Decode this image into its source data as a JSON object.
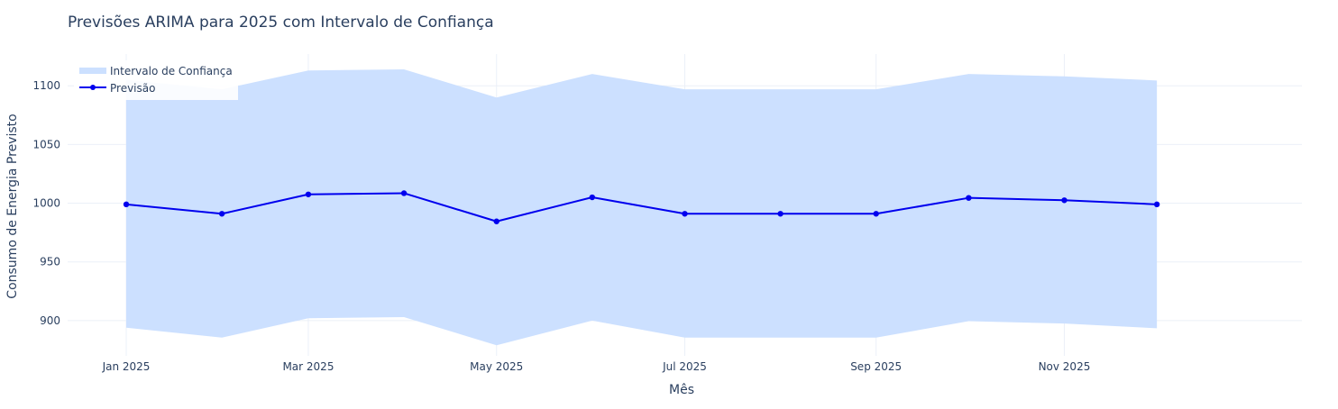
{
  "chart_data": {
    "type": "line",
    "title": "Previsões ARIMA para 2025 com Intervalo de Confiança",
    "xlabel": "Mês",
    "ylabel": "Consumo de Energia Previsto",
    "x": [
      "2025-01-01",
      "2025-02-01",
      "2025-03-01",
      "2025-04-01",
      "2025-05-01",
      "2025-06-01",
      "2025-07-01",
      "2025-08-01",
      "2025-09-01",
      "2025-10-01",
      "2025-11-01",
      "2025-12-01"
    ],
    "x_ticks": [
      "2025-01-01",
      "2025-03-01",
      "2025-05-01",
      "2025-07-01",
      "2025-09-01",
      "2025-11-01"
    ],
    "x_tick_labels": [
      "Jan 2025",
      "Mar 2025",
      "May 2025",
      "Jul 2025",
      "Sep 2025",
      "Nov 2025"
    ],
    "xlim": [
      "2024-12-13",
      "2026-01-17"
    ],
    "y_ticks": [
      900,
      950,
      1000,
      1050,
      1100
    ],
    "y_tick_labels": [
      "900",
      "950",
      "1000",
      "1050",
      "1100"
    ],
    "ylim": [
      870,
      1127
    ],
    "grid": true,
    "legend_position": "top-left",
    "series": [
      {
        "name": "Previsão",
        "kind": "line+markers",
        "color": "#0000ee",
        "values": [
          999,
          991,
          1007.5,
          1008.5,
          984.5,
          1005,
          991,
          991,
          991,
          1004.5,
          1002.5,
          999
        ]
      },
      {
        "name": "Intervalo de Confiança",
        "kind": "band",
        "color": "#cce0ff",
        "upper": [
          1105,
          1097,
          1113,
          1114,
          1090,
          1110,
          1097,
          1097,
          1097,
          1110,
          1108,
          1104.5
        ],
        "lower": [
          894,
          885.5,
          902,
          903,
          879,
          900,
          885.5,
          885.5,
          885.5,
          899.5,
          897.5,
          893.5
        ]
      }
    ]
  }
}
